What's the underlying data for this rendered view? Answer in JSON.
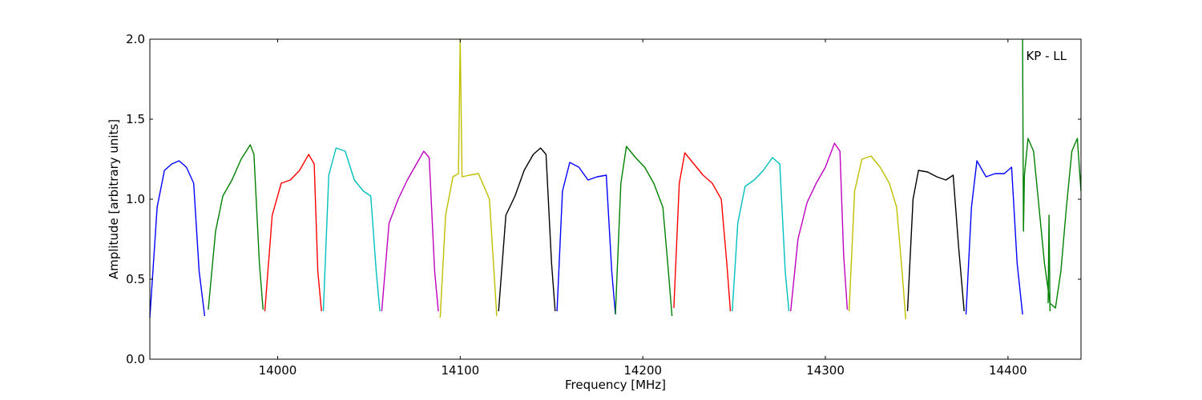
{
  "chart_data": {
    "type": "line",
    "title": "",
    "annotation": "KP - LL",
    "xlabel": "Frequency [MHz]",
    "ylabel": "Amplitude [arbitrary units]",
    "xlim": [
      13930,
      14440
    ],
    "ylim": [
      0.0,
      2.0
    ],
    "xticks": [
      14000,
      14100,
      14200,
      14300,
      14400
    ],
    "yticks": [
      0.0,
      0.5,
      1.0,
      1.5,
      2.0
    ],
    "xtick_labels": [
      "14000",
      "14100",
      "14200",
      "14300",
      "14400"
    ],
    "ytick_labels": [
      "0.0",
      "0.5",
      "1.0",
      "1.5",
      "2.0"
    ],
    "grid": false,
    "series": [
      {
        "color": "#0000ff",
        "x": [
          13930,
          13934,
          13938,
          13942,
          13946,
          13950,
          13954,
          13957,
          13960
        ],
        "y": [
          0.26,
          0.95,
          1.18,
          1.22,
          1.24,
          1.2,
          1.1,
          0.55,
          0.27
        ]
      },
      {
        "color": "#008000",
        "x": [
          13962,
          13966,
          13970,
          13975,
          13980,
          13985,
          13987,
          13990,
          13992
        ],
        "y": [
          0.31,
          0.8,
          1.02,
          1.12,
          1.25,
          1.34,
          1.28,
          0.6,
          0.31
        ]
      },
      {
        "color": "#ff0000",
        "x": [
          13993,
          13997,
          14002,
          14007,
          14012,
          14017,
          14020,
          14022,
          14024
        ],
        "y": [
          0.3,
          0.9,
          1.1,
          1.12,
          1.18,
          1.28,
          1.22,
          0.55,
          0.3
        ]
      },
      {
        "color": "#00bfbf",
        "x": [
          14025,
          14028,
          14032,
          14037,
          14042,
          14047,
          14051,
          14054,
          14056
        ],
        "y": [
          0.3,
          1.15,
          1.32,
          1.3,
          1.12,
          1.05,
          1.02,
          0.55,
          0.3
        ]
      },
      {
        "color": "#bf00bf",
        "x": [
          14057,
          14061,
          14066,
          14071,
          14076,
          14080,
          14083,
          14086,
          14088
        ],
        "y": [
          0.3,
          0.85,
          1.0,
          1.12,
          1.22,
          1.3,
          1.26,
          0.55,
          0.3
        ]
      },
      {
        "color": "#bfbf00",
        "x": [
          14089,
          14092,
          14096,
          14099,
          14100,
          14101,
          14105,
          14110,
          14116,
          14120
        ],
        "y": [
          0.26,
          0.9,
          1.14,
          1.16,
          2.0,
          1.14,
          1.15,
          1.16,
          1.0,
          0.27
        ]
      },
      {
        "color": "#000000",
        "x": [
          14121,
          14125,
          14130,
          14135,
          14140,
          14144,
          14147,
          14150,
          14152
        ],
        "y": [
          0.3,
          0.9,
          1.02,
          1.18,
          1.28,
          1.32,
          1.28,
          0.6,
          0.3
        ]
      },
      {
        "color": "#0000ff",
        "x": [
          14153,
          14156,
          14160,
          14165,
          14170,
          14175,
          14180,
          14183,
          14185
        ],
        "y": [
          0.3,
          1.05,
          1.23,
          1.2,
          1.12,
          1.14,
          1.15,
          0.55,
          0.28
        ]
      },
      {
        "color": "#008000",
        "x": [
          14185,
          14188,
          14191,
          14196,
          14201,
          14206,
          14211,
          14214,
          14216
        ],
        "y": [
          0.28,
          1.1,
          1.33,
          1.26,
          1.2,
          1.1,
          0.95,
          0.55,
          0.27
        ]
      },
      {
        "color": "#ff0000",
        "x": [
          14217,
          14220,
          14223,
          14228,
          14233,
          14238,
          14243,
          14246,
          14248
        ],
        "y": [
          0.32,
          1.1,
          1.29,
          1.22,
          1.15,
          1.1,
          1.0,
          0.6,
          0.3
        ]
      },
      {
        "color": "#00bfbf",
        "x": [
          14249,
          14252,
          14256,
          14261,
          14266,
          14271,
          14275,
          14278,
          14280
        ],
        "y": [
          0.3,
          0.85,
          1.08,
          1.12,
          1.18,
          1.26,
          1.22,
          0.55,
          0.3
        ]
      },
      {
        "color": "#bf00bf",
        "x": [
          14281,
          14285,
          14290,
          14295,
          14300,
          14305,
          14308,
          14310,
          14312
        ],
        "y": [
          0.3,
          0.75,
          0.98,
          1.1,
          1.2,
          1.35,
          1.3,
          0.65,
          0.31
        ]
      },
      {
        "color": "#bfbf00",
        "x": [
          14313,
          14316,
          14320,
          14325,
          14330,
          14335,
          14339,
          14342,
          14344
        ],
        "y": [
          0.3,
          1.05,
          1.25,
          1.27,
          1.2,
          1.1,
          0.95,
          0.55,
          0.25
        ]
      },
      {
        "color": "#000000",
        "x": [
          14345,
          14348,
          14351,
          14356,
          14361,
          14366,
          14370,
          14373,
          14376
        ],
        "y": [
          0.3,
          1.0,
          1.18,
          1.17,
          1.14,
          1.12,
          1.15,
          0.7,
          0.3
        ]
      },
      {
        "color": "#0000ff",
        "x": [
          14377,
          14380,
          14383,
          14388,
          14393,
          14398,
          14402,
          14405,
          14408
        ],
        "y": [
          0.28,
          0.95,
          1.24,
          1.14,
          1.16,
          1.16,
          1.2,
          0.6,
          0.28
        ]
      },
      {
        "color": "#008000",
        "x": [
          14408,
          14408.5,
          14409,
          14411,
          14414,
          14417,
          14420,
          14423,
          14426,
          14429,
          14432,
          14435,
          14438,
          14440
        ],
        "y": [
          2.0,
          0.8,
          1.15,
          1.38,
          1.3,
          0.95,
          0.6,
          0.35,
          0.32,
          0.55,
          0.95,
          1.3,
          1.38,
          1.05
        ]
      },
      {
        "color": "#008000",
        "x": [
          14422,
          14422.5,
          14423
        ],
        "y": [
          0.35,
          0.9,
          0.3
        ]
      }
    ]
  }
}
